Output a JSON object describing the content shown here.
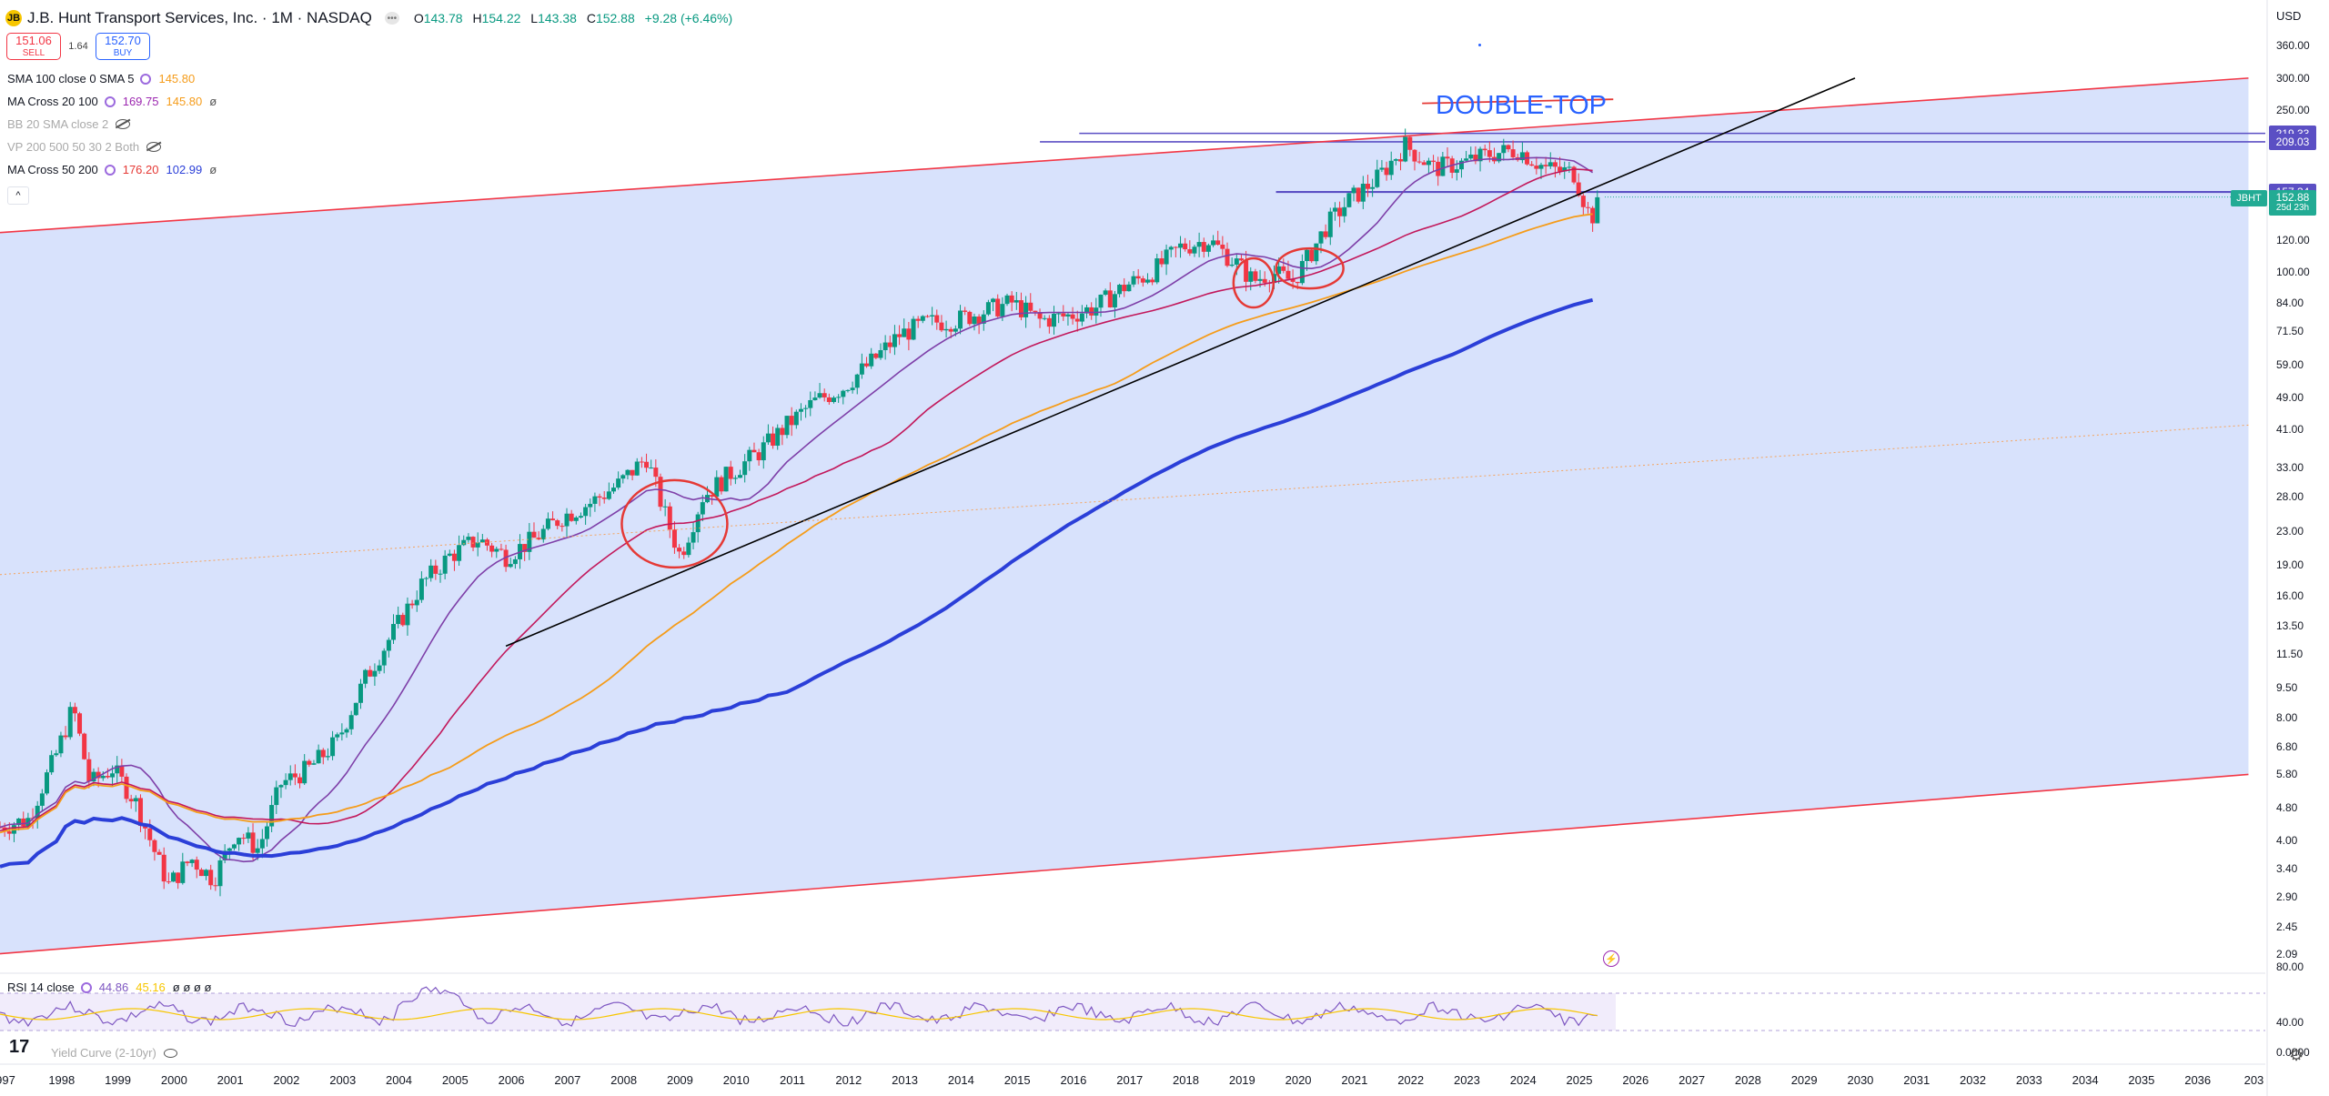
{
  "header": {
    "logo_text": "JB",
    "title": "J.B. Hunt Transport Services, Inc. · 1M · NASDAQ",
    "menu_icon": "more-dots-icon",
    "ohlc": [
      {
        "label": "O",
        "value": "143.78"
      },
      {
        "label": "H",
        "value": "154.22"
      },
      {
        "label": "L",
        "value": "143.38"
      },
      {
        "label": "C",
        "value": "152.88"
      }
    ],
    "change": "+9.28 (+6.46%)"
  },
  "trade": {
    "sell_price": "151.06",
    "sell_label": "SELL",
    "spread": "1.64",
    "buy_price": "152.70",
    "buy_label": "BUY"
  },
  "indicators": [
    {
      "name": "SMA 100 close 0 SMA 5",
      "values": [
        "145.80"
      ]
    },
    {
      "name": "MA Cross 20 100",
      "values": [
        "169.75",
        "145.80",
        "ø"
      ]
    },
    {
      "name": "BB 20 SMA close 2",
      "hidden": true
    },
    {
      "name": "VP 200 500 50 30 2 Both",
      "hidden": true
    },
    {
      "name": "MA Cross 50 200",
      "values": [
        "176.20",
        "102.99",
        "ø"
      ]
    }
  ],
  "annotation": "DOUBLE-TOP",
  "price_axis": {
    "currency": "USD",
    "ticks": [
      "360.00",
      "300.00",
      "250.00",
      "120.00",
      "100.00",
      "84.00",
      "71.50",
      "59.00",
      "49.00",
      "41.00",
      "33.00",
      "28.00",
      "23.00",
      "19.00",
      "16.00",
      "13.50",
      "11.50",
      "9.50",
      "8.00",
      "6.80",
      "5.80",
      "4.80",
      "4.00",
      "3.40",
      "2.90",
      "2.45",
      "2.09"
    ],
    "tags": [
      {
        "label": "219.33",
        "color": "#5b4fc4"
      },
      {
        "label": "209.03",
        "color": "#5b4fc4"
      },
      {
        "label": "157.34",
        "color": "#5b4fc4"
      },
      {
        "label": "152.88",
        "sub": "25d 23h",
        "color": "#22ab94"
      }
    ],
    "symbol_tag": "JBHT"
  },
  "rsi": {
    "label": "RSI 14 close",
    "value": "44.86",
    "ma_value": "45.16",
    "extra": "ø ø ø ø",
    "ticks": [
      "80.00",
      "40.00"
    ]
  },
  "yield_curve": {
    "label": "Yield Curve (2-10yr)"
  },
  "yield_axis": {
    "tick": "0.0000"
  },
  "time_axis": [
    "997",
    "1998",
    "1999",
    "2000",
    "2001",
    "2002",
    "2003",
    "2004",
    "2005",
    "2006",
    "2007",
    "2008",
    "2009",
    "2010",
    "2011",
    "2012",
    "2013",
    "2014",
    "2015",
    "2016",
    "2017",
    "2018",
    "2019",
    "2020",
    "2021",
    "2022",
    "2023",
    "2024",
    "2025",
    "2026",
    "2027",
    "2028",
    "2029",
    "2030",
    "2031",
    "2032",
    "2033",
    "2034",
    "2035",
    "2036",
    "203"
  ],
  "chart_data": {
    "type": "candlestick",
    "symbol": "JBHT",
    "interval": "1M",
    "log_scale": true,
    "y_range": [
      2.0,
      380
    ],
    "x_range": [
      1997,
      2037.3
    ],
    "approx_closes": [
      [
        1997,
        4.3
      ],
      [
        1997.5,
        4.5
      ],
      [
        1998,
        6.5
      ],
      [
        1998.3,
        8.5
      ],
      [
        1998.6,
        5.5
      ],
      [
        1999,
        6
      ],
      [
        1999.4,
        5
      ],
      [
        1999.8,
        3.6
      ],
      [
        2000,
        3.1
      ],
      [
        2000.4,
        3.6
      ],
      [
        2000.8,
        3.2
      ],
      [
        2001.2,
        4.2
      ],
      [
        2001.6,
        3.8
      ],
      [
        2002,
        5.5
      ],
      [
        2002.5,
        6
      ],
      [
        2003,
        7
      ],
      [
        2003.5,
        10
      ],
      [
        2004,
        13
      ],
      [
        2004.5,
        17
      ],
      [
        2005,
        20
      ],
      [
        2005.5,
        22
      ],
      [
        2006,
        20
      ],
      [
        2006.5,
        22
      ],
      [
        2007,
        25
      ],
      [
        2007.5,
        27
      ],
      [
        2008,
        30
      ],
      [
        2008.5,
        35
      ],
      [
        2008.8,
        26
      ],
      [
        2009.1,
        20
      ],
      [
        2009.5,
        28
      ],
      [
        2010,
        32
      ],
      [
        2010.5,
        36
      ],
      [
        2011,
        42
      ],
      [
        2011.5,
        48
      ],
      [
        2012,
        52
      ],
      [
        2012.5,
        60
      ],
      [
        2013,
        70
      ],
      [
        2013.5,
        75
      ],
      [
        2014,
        76
      ],
      [
        2014.5,
        80
      ],
      [
        2015,
        84
      ],
      [
        2015.5,
        76
      ],
      [
        2016,
        78
      ],
      [
        2016.5,
        82
      ],
      [
        2017,
        92
      ],
      [
        2017.5,
        100
      ],
      [
        2018,
        115
      ],
      [
        2018.5,
        120
      ],
      [
        2019,
        105
      ],
      [
        2019.3,
        95
      ],
      [
        2019.6,
        100
      ],
      [
        2020,
        95
      ],
      [
        2020.3,
        110
      ],
      [
        2020.6,
        130
      ],
      [
        2021,
        150
      ],
      [
        2021.5,
        170
      ],
      [
        2022,
        205
      ],
      [
        2022.5,
        180
      ],
      [
        2023,
        185
      ],
      [
        2023.5,
        195
      ],
      [
        2024,
        200
      ],
      [
        2024.5,
        180
      ],
      [
        2025,
        175
      ],
      [
        2025.3,
        135
      ],
      [
        2025.5,
        152.88
      ]
    ],
    "moving_averages": [
      {
        "name": "MA Cross 20 100 (fast)",
        "color": "#7e3fa8",
        "last": 169.75
      },
      {
        "name": "MA Cross 20 100 (slow)",
        "color": "#f59c1a",
        "last": 145.8
      },
      {
        "name": "MA Cross 50 200 (fast)",
        "color": "#d32f5a",
        "last": 176.2
      },
      {
        "name": "MA Cross 50 200 (slow)",
        "color": "#2b3fd8",
        "last": 102.99
      }
    ],
    "horizontal_levels": [
      219.33,
      209.03,
      157.34,
      152.88
    ],
    "channel": {
      "color": "#f23645",
      "upper": [
        [
          1997,
          125
        ],
        [
          2037,
          300
        ]
      ],
      "lower": [
        [
          1997,
          2.1
        ],
        [
          2037,
          5.8
        ]
      ]
    },
    "trendline": {
      "color": "#000000",
      "points": [
        [
          2006,
          12
        ],
        [
          2030,
          300
        ]
      ]
    },
    "circled_regions": [
      2009,
      2019.3,
      2020.3
    ],
    "rsi_range": [
      40,
      80
    ]
  },
  "colors": {
    "up": "#089981",
    "down": "#f23645",
    "channel_fill": "#d6e0fc",
    "level": "#5b4fc4",
    "accent": "#2962ff"
  }
}
